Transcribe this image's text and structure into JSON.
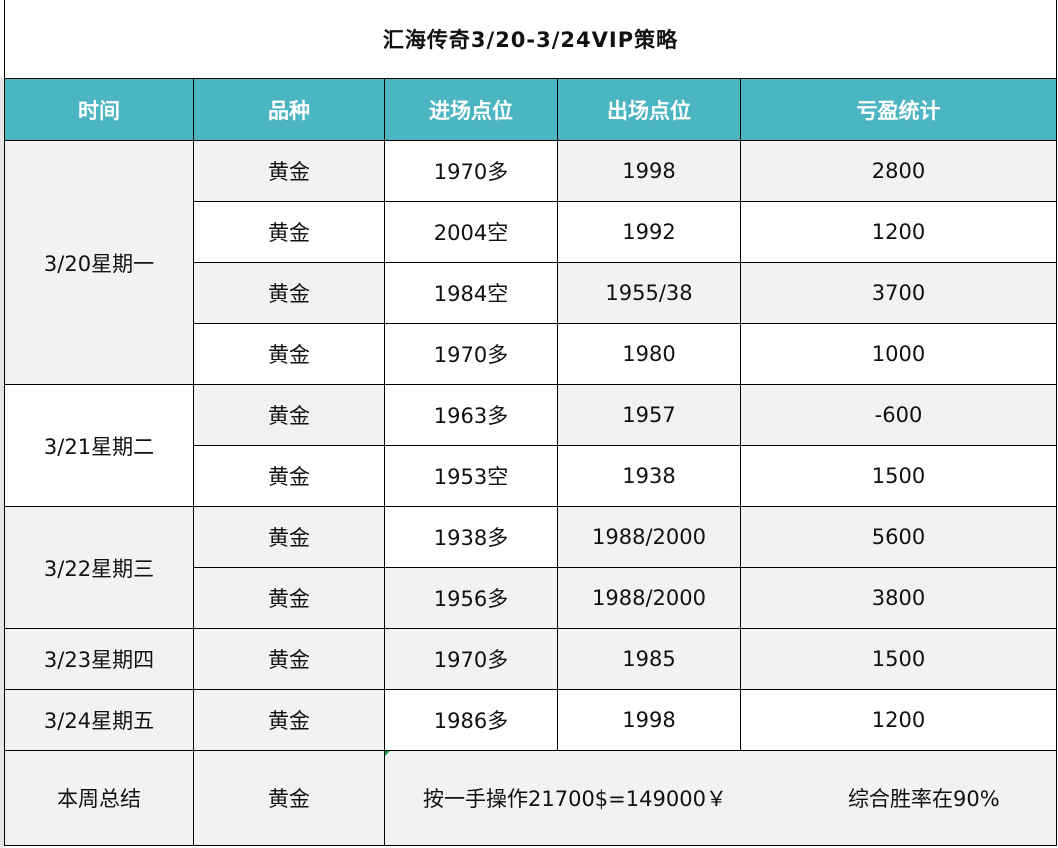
{
  "title": "汇海传奇3/20-3/24VIP策略",
  "headers": [
    "时间",
    "品种",
    "进场点位",
    "出场点位",
    "亏盈统计"
  ],
  "groups": [
    {
      "date": "3/20星期一",
      "rows": [
        {
          "product": "黄金",
          "entry": "1970多",
          "exit": "1998",
          "pnl": "2800"
        },
        {
          "product": "黄金",
          "entry": "2004空",
          "exit": "1992",
          "pnl": "1200"
        },
        {
          "product": "黄金",
          "entry": "1984空",
          "exit": "1955/38",
          "pnl": "3700"
        },
        {
          "product": "黄金",
          "entry": "1970多",
          "exit": "1980",
          "pnl": "1000"
        }
      ]
    },
    {
      "date": "3/21星期二",
      "rows": [
        {
          "product": "黄金",
          "entry": "1963多",
          "exit": "1957",
          "pnl": "-600"
        },
        {
          "product": "黄金",
          "entry": "1953空",
          "exit": "1938",
          "pnl": "1500"
        }
      ]
    },
    {
      "date": "3/22星期三",
      "rows": [
        {
          "product": "黄金",
          "entry": "1938多",
          "exit": "1988/2000",
          "pnl": "5600"
        },
        {
          "product": "黄金",
          "entry": "1956多",
          "exit": "1988/2000",
          "pnl": "3800"
        }
      ]
    },
    {
      "date": "3/23星期四",
      "rows": [
        {
          "product": "黄金",
          "entry": "1970多",
          "exit": "1985",
          "pnl": "1500"
        }
      ]
    },
    {
      "date": "3/24星期五",
      "rows": [
        {
          "product": "黄金",
          "entry": "1986多",
          "exit": "1998",
          "pnl": "1200"
        }
      ]
    }
  ],
  "summary": {
    "label": "本周总结",
    "product": "黄金",
    "result_text": "按一手操作21700$=149000￥",
    "win_rate_text": "综合胜率在90%"
  },
  "colors": {
    "header_bg": "#4bb5c1",
    "header_text": "#ffffff",
    "row_gray": "#f2f2f2",
    "row_white": "#ffffff",
    "border": "#000000"
  }
}
